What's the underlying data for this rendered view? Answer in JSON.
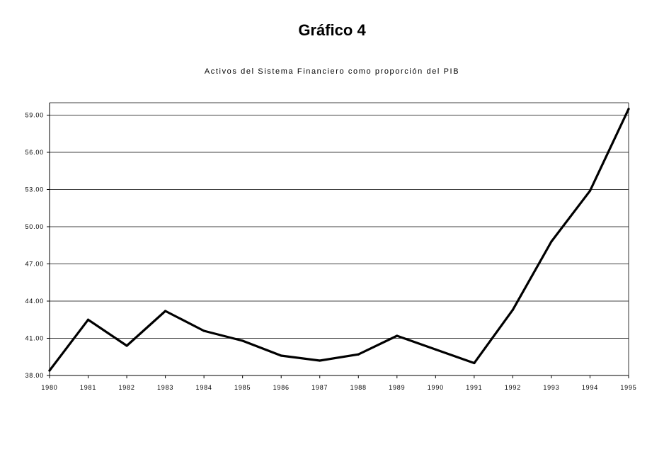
{
  "figure_title": "Gráfico 4",
  "chart_data": {
    "type": "line",
    "title": "Activos del Sistema Financiero como proporción del PIB",
    "xlabel": "",
    "ylabel": "",
    "x": [
      "1980",
      "1981",
      "1982",
      "1983",
      "1984",
      "1985",
      "1986",
      "1987",
      "1988",
      "1989",
      "1990",
      "1991",
      "1992",
      "1993",
      "1994",
      "1995"
    ],
    "series": [
      {
        "values": [
          38.4,
          42.5,
          40.4,
          43.2,
          41.6,
          40.8,
          39.6,
          39.2,
          39.7,
          41.2,
          40.1,
          39.0,
          43.3,
          48.8,
          52.9,
          59.5
        ]
      }
    ],
    "y_ticks": [
      "38.00",
      "41.00",
      "44.00",
      "47.00",
      "50.00",
      "53.00",
      "56.00",
      "59.00"
    ],
    "ylim": [
      38,
      59
    ],
    "grid": "horizontal",
    "legend": "none",
    "line_color": "#000000"
  }
}
